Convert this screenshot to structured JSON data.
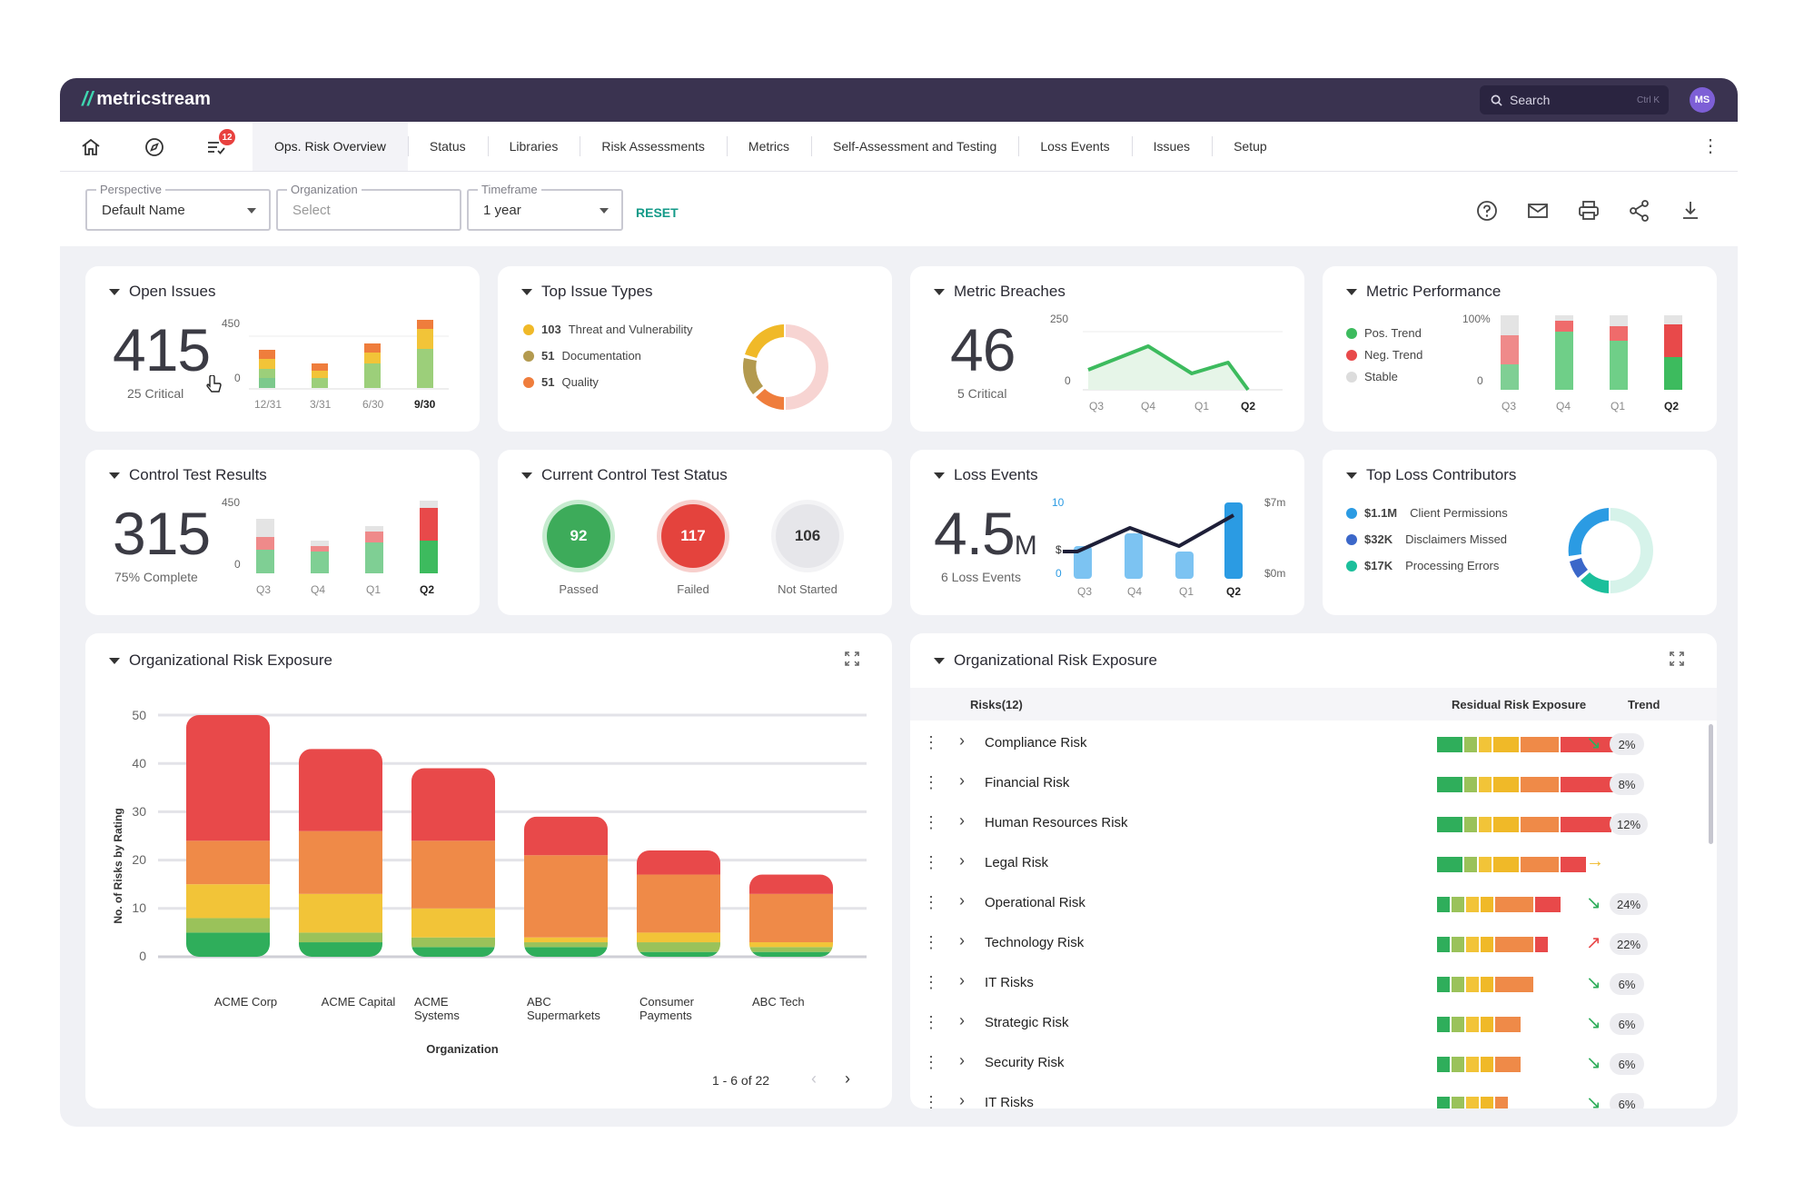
{
  "app": {
    "logo": "metricstream",
    "search_placeholder": "Search",
    "search_shortcut": "Ctrl K",
    "avatar": "MS",
    "notification_count": "12"
  },
  "nav": {
    "tabs": [
      "Ops. Risk Overview",
      "Status",
      "Libraries",
      "Risk Assessments",
      "Metrics",
      "Self-Assessment and Testing",
      "Loss Events",
      "Issues",
      "Setup"
    ],
    "active_tab": "Ops. Risk Overview"
  },
  "filters": {
    "perspective": {
      "label": "Perspective",
      "value": "Default Name"
    },
    "organization": {
      "label": "Organization",
      "value": "Select"
    },
    "timeframe": {
      "label": "Timeframe",
      "value": "1 year"
    },
    "reset": "RESET"
  },
  "open_issues": {
    "title": "Open Issues",
    "value": "415",
    "sub": "25 Critical",
    "chart_data": {
      "type": "bar",
      "categories": [
        "12/31",
        "3/31",
        "6/30",
        "9/30"
      ],
      "ymax_label": "450",
      "ymin_label": "0",
      "highlight": "9/30"
    }
  },
  "top_issue_types": {
    "title": "Top Issue Types",
    "items": [
      {
        "count": "103",
        "label": "Threat and Vulnerability",
        "color": "#f0b928"
      },
      {
        "count": "51",
        "label": "Documentation",
        "color": "#b39a4f"
      },
      {
        "count": "51",
        "label": "Quality",
        "color": "#ef7d3c"
      }
    ],
    "chart_data": {
      "type": "pie",
      "labels": [
        "Threat and Vulnerability",
        "Documentation",
        "Quality"
      ],
      "values": [
        103,
        51,
        51
      ]
    }
  },
  "metric_breaches": {
    "title": "Metric Breaches",
    "value": "46",
    "sub": "5 Critical",
    "chart_data": {
      "type": "area",
      "categories": [
        "Q3",
        "Q4",
        "Q1",
        "Q2"
      ],
      "ymax_label": "250",
      "ymin_label": "0",
      "highlight": "Q2"
    }
  },
  "metric_performance": {
    "title": "Metric Performance",
    "legend": [
      {
        "label": "Pos. Trend",
        "color": "#3dbb5e"
      },
      {
        "label": "Neg. Trend",
        "color": "#e8494a"
      },
      {
        "label": "Stable",
        "color": "#dcdcdc"
      }
    ],
    "chart_data": {
      "type": "bar",
      "categories": [
        "Q3",
        "Q4",
        "Q1",
        "Q2"
      ],
      "ymax_label": "100%",
      "ymin_label": "0",
      "highlight": "Q2"
    }
  },
  "control_test_results": {
    "title": "Control Test Results",
    "value": "315",
    "sub": "75% Complete",
    "chart_data": {
      "type": "bar",
      "categories": [
        "Q3",
        "Q4",
        "Q1",
        "Q2"
      ],
      "ymax_label": "450",
      "ymin_label": "0",
      "highlight": "Q2"
    }
  },
  "current_control_test_status": {
    "title": "Current Control Test Status",
    "items": [
      {
        "value": "92",
        "label": "Passed"
      },
      {
        "value": "117",
        "label": "Failed"
      },
      {
        "value": "106",
        "label": "Not Started"
      }
    ]
  },
  "loss_events": {
    "title": "Loss Events",
    "value": "4.5",
    "unit": "M",
    "sub": "6 Loss Events",
    "chart_data": {
      "type": "bar",
      "categories": [
        "Q3",
        "Q4",
        "Q1",
        "Q2"
      ],
      "left_max_label": "10",
      "left_min_label": "0",
      "right_max_label": "$7m",
      "right_min_label": "$0m",
      "left_axis_extra": "$",
      "highlight": "Q2"
    }
  },
  "top_loss_contributors": {
    "title": "Top Loss Contributors",
    "items": [
      {
        "amount": "$1.1M",
        "label": "Client Permissions",
        "color": "#2b9be3"
      },
      {
        "amount": "$32K",
        "label": "Disclaimers Missed",
        "color": "#3b67c9"
      },
      {
        "amount": "$17K",
        "label": "Processing Errors",
        "color": "#1bbf9b"
      }
    ]
  },
  "org_risk_chart": {
    "title": "Organizational Risk Exposure",
    "ylabel": "No. of Risks by Rating",
    "xlabel": "Organization",
    "pagination": "1 - 6 of 22",
    "chart_data": {
      "type": "bar",
      "stacked": true,
      "categories": [
        "ACME Corp",
        "ACME Capital",
        "ACME Systems",
        "ABC Supermarkets",
        "Consumer Payments",
        "ABC Tech"
      ],
      "y_ticks": [
        "50",
        "40",
        "30",
        "20",
        "10",
        "0"
      ],
      "ylim": [
        0,
        50
      ],
      "series": [
        {
          "color": "#2fae5b",
          "values": [
            5,
            3,
            2,
            2,
            1,
            1
          ]
        },
        {
          "color": "#9ac25a",
          "values": [
            3,
            2,
            2,
            1,
            2,
            1
          ]
        },
        {
          "color": "#f2c438",
          "values": [
            7,
            8,
            6,
            1,
            2,
            1
          ]
        },
        {
          "color": "#ef8a48",
          "values": [
            9,
            13,
            14,
            17,
            12,
            10
          ]
        },
        {
          "color": "#e8494a",
          "values": [
            26,
            17,
            15,
            8,
            5,
            4
          ]
        }
      ]
    }
  },
  "org_risk_table": {
    "title": "Organizational Risk Exposure",
    "headers": {
      "risks": "Risks(12)",
      "exposure": "Residual Risk Exposure",
      "trend": "Trend"
    },
    "rows": [
      {
        "name": "Compliance Risk",
        "trend": "down",
        "pct": "2%",
        "segments": [
          2,
          1,
          1,
          2,
          3,
          6
        ]
      },
      {
        "name": "Financial Risk",
        "trend": "up",
        "pct": "8%",
        "segments": [
          2,
          1,
          1,
          2,
          3,
          5
        ]
      },
      {
        "name": "Human Resources Risk",
        "trend": "up",
        "pct": "12%",
        "segments": [
          2,
          1,
          1,
          2,
          3,
          4
        ]
      },
      {
        "name": "Legal Risk",
        "trend": "flat",
        "pct": "",
        "segments": [
          2,
          1,
          1,
          2,
          3,
          2
        ]
      },
      {
        "name": "Operational Risk",
        "trend": "down",
        "pct": "24%",
        "segments": [
          1,
          1,
          1,
          1,
          3,
          2
        ]
      },
      {
        "name": "Technology Risk",
        "trend": "up",
        "pct": "22%",
        "segments": [
          1,
          1,
          1,
          1,
          3,
          1
        ]
      },
      {
        "name": "IT Risks",
        "trend": "down",
        "pct": "6%",
        "segments": [
          1,
          1,
          1,
          1,
          3,
          0
        ]
      },
      {
        "name": "Strategic Risk",
        "trend": "down",
        "pct": "6%",
        "segments": [
          1,
          1,
          1,
          1,
          2,
          0
        ]
      },
      {
        "name": "Security Risk",
        "trend": "down",
        "pct": "6%",
        "segments": [
          1,
          1,
          1,
          1,
          2,
          0
        ]
      },
      {
        "name": "IT Risks",
        "trend": "down",
        "pct": "6%",
        "segments": [
          1,
          1,
          1,
          1,
          1,
          0
        ]
      }
    ]
  }
}
